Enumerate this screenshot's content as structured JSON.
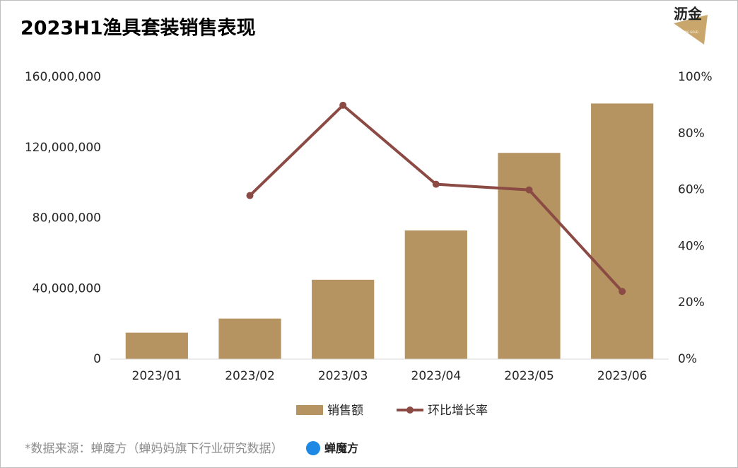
{
  "chart_data": {
    "type": "bar_line",
    "title": "2023H1渔具套装销售表现",
    "categories": [
      "2023/01",
      "2023/02",
      "2023/03",
      "2023/04",
      "2023/05",
      "2023/06"
    ],
    "series": [
      {
        "name": "销售额",
        "type": "bar",
        "color": "#b59462",
        "values": [
          15000000,
          23000000,
          45000000,
          73000000,
          117000000,
          145000000
        ]
      },
      {
        "name": "环比增长率",
        "type": "line",
        "axis": "y2",
        "color": "#8b4a44",
        "values": [
          null,
          58,
          90,
          62,
          60,
          24
        ]
      }
    ],
    "ylim": [
      0,
      160000000
    ],
    "yticks": [
      0,
      {
        "value": 40000000,
        "label": "40,000,000"
      },
      {
        "value": 80000000,
        "label": "80,000,000"
      },
      {
        "value": 120000000,
        "label": "120,000,000"
      },
      {
        "value": 160000000,
        "label": "160,000,000"
      }
    ],
    "y2lim": [
      0,
      100
    ],
    "y2ticks": [
      {
        "value": 0,
        "label": "0%"
      },
      {
        "value": 20,
        "label": "20%"
      },
      {
        "value": 40,
        "label": "40%"
      },
      {
        "value": 60,
        "label": "60%"
      },
      {
        "value": 80,
        "label": "80%"
      },
      {
        "value": 100,
        "label": "100%"
      }
    ],
    "grid": false,
    "legend": "bottom"
  },
  "logo": {
    "text": "沥金",
    "subtitle": "FINDING GOLD"
  },
  "source": "*数据来源：蝉魔方（蝉妈妈旗下行业研究数据）",
  "source_logo": "蝉魔方"
}
